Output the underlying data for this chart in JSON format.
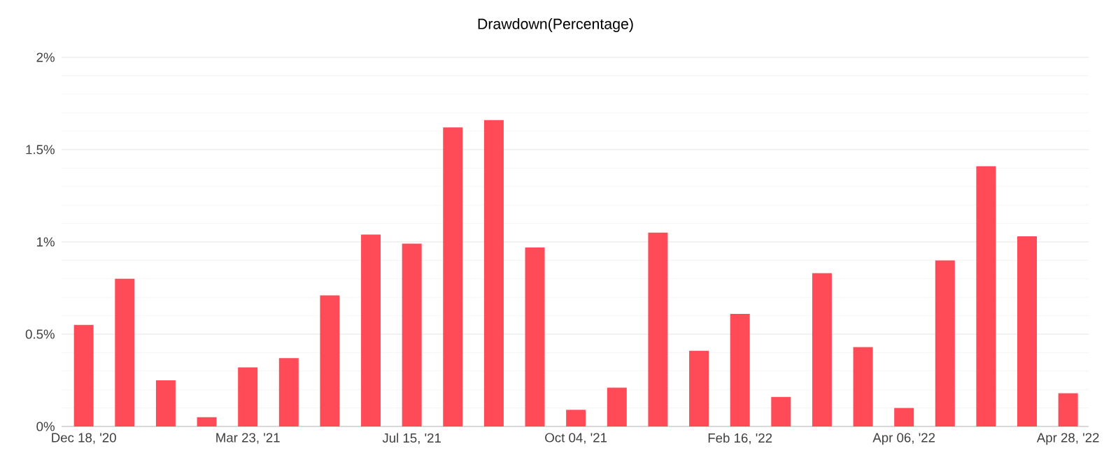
{
  "chart_data": {
    "type": "bar",
    "title": "Drawdown(Percentage)",
    "categories": [
      "Dec 18, '20",
      null,
      null,
      null,
      "Mar 23, '21",
      null,
      null,
      null,
      "Jul 15, '21",
      null,
      null,
      null,
      "Oct 04, '21",
      null,
      null,
      null,
      "Feb 16, '22",
      null,
      null,
      null,
      "Apr 06, '22",
      null,
      null,
      null,
      "Apr 28, '22"
    ],
    "values": [
      0.55,
      0.8,
      0.25,
      0.05,
      0.32,
      0.37,
      0.71,
      1.04,
      0.99,
      1.62,
      1.66,
      0.97,
      0.09,
      0.21,
      1.05,
      0.41,
      0.61,
      0.16,
      0.83,
      0.43,
      0.1,
      0.9,
      1.41,
      1.03,
      0.18
    ],
    "color": "#ff4a57",
    "ylim": [
      0,
      2
    ],
    "yticks": [
      {
        "value": 0,
        "label": "0%"
      },
      {
        "value": 0.5,
        "label": "0.5%"
      },
      {
        "value": 1,
        "label": "1%"
      },
      {
        "value": 1.5,
        "label": "1.5%"
      },
      {
        "value": 2,
        "label": "2%"
      }
    ],
    "grid": "y"
  }
}
